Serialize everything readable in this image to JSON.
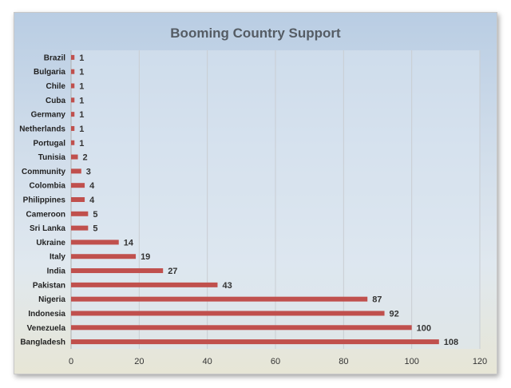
{
  "chart_data": {
    "type": "bar",
    "orientation": "horizontal",
    "title": "Booming Country Support",
    "xlabel": "",
    "ylabel": "",
    "xlim": [
      0,
      120
    ],
    "x_ticks": [
      "0",
      "20",
      "40",
      "60",
      "80",
      "100",
      "120"
    ],
    "grid": true,
    "legend": "none",
    "bar_color": "#c0504d",
    "categories": [
      "Brazil",
      "Bulgaria",
      "Chile",
      "Cuba",
      "Germany",
      "Netherlands",
      "Portugal",
      "Tunisia",
      "Community",
      "Colombia",
      "Philippines",
      "Cameroon",
      "Sri Lanka",
      "Ukraine",
      "Italy",
      "India",
      "Pakistan",
      "Nigeria",
      "Indonesia",
      "Venezuela",
      "Bangladesh"
    ],
    "values": [
      1,
      1,
      1,
      1,
      1,
      1,
      1,
      2,
      3,
      4,
      4,
      5,
      5,
      14,
      19,
      27,
      43,
      87,
      92,
      100,
      108
    ]
  }
}
